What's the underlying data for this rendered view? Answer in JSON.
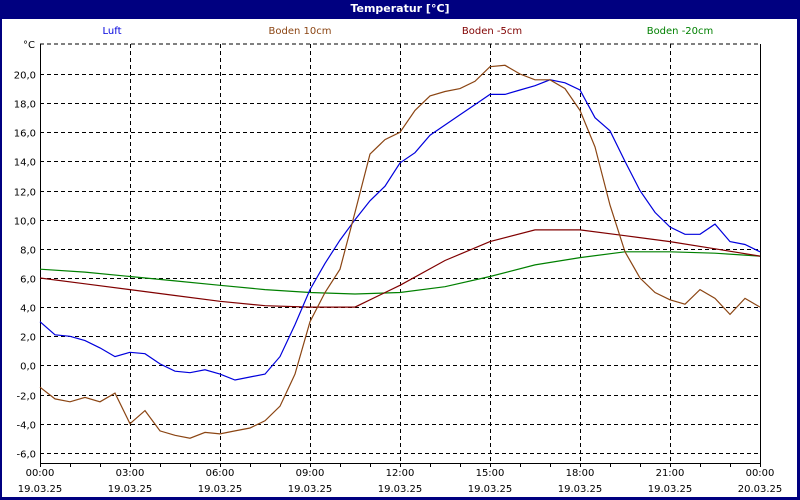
{
  "window": {
    "title": "Temperatur [°C]"
  },
  "chart_data": {
    "type": "line",
    "title": "Temperatur [°C]",
    "ylabel": "°C",
    "xlabel": "",
    "ylim": [
      -6.7,
      22.06
    ],
    "yticks": [
      20.0,
      18.0,
      16.0,
      14.0,
      12.0,
      10.0,
      8.0,
      6.0,
      4.0,
      2.0,
      0.0,
      -2.0,
      -4.0,
      -6.0
    ],
    "ytick_labels": [
      "20,0",
      "18,0",
      "16,0",
      "14,0",
      "12,0",
      "10,0",
      "8,0",
      "6,0",
      "4,0",
      "2,0",
      "0,0",
      "-2,0",
      "-4,0",
      "-6,0"
    ],
    "xticks": [
      {
        "time": "00:00",
        "date": "19.03.25"
      },
      {
        "time": "03:00",
        "date": "19.03.25"
      },
      {
        "time": "06:00",
        "date": "19.03.25"
      },
      {
        "time": "09:00",
        "date": "19.03.25"
      },
      {
        "time": "12:00",
        "date": "19.03.25"
      },
      {
        "time": "15:00",
        "date": "19.03.25"
      },
      {
        "time": "18:00",
        "date": "19.03.25"
      },
      {
        "time": "21:00",
        "date": "19.03.25"
      },
      {
        "time": "00:00",
        "date": "20.03.25"
      }
    ],
    "grid": true,
    "legend_position": "top",
    "x_unit": "hours since 19.03.25 00:00",
    "series": [
      {
        "name": "Luft",
        "color": "#0000dd",
        "x": [
          0,
          0.5,
          1,
          1.5,
          2,
          2.5,
          3,
          3.5,
          4,
          4.5,
          5,
          5.5,
          6,
          6.5,
          7,
          7.5,
          8,
          8.5,
          9,
          9.5,
          10,
          10.5,
          11,
          11.5,
          12,
          12.5,
          13,
          13.5,
          14,
          14.5,
          15,
          15.5,
          16,
          16.5,
          17,
          17.5,
          18,
          18.5,
          19,
          19.5,
          20,
          20.5,
          21,
          21.5,
          22,
          22.5,
          23,
          23.5,
          24
        ],
        "values": [
          3.0,
          2.1,
          2.0,
          1.7,
          1.2,
          0.6,
          0.9,
          0.8,
          0.1,
          -0.4,
          -0.5,
          -0.3,
          -0.6,
          -1.0,
          -0.8,
          -0.6,
          0.6,
          2.8,
          5.2,
          7.0,
          8.6,
          10.0,
          11.3,
          12.3,
          13.9,
          14.6,
          15.8,
          16.5,
          17.2,
          17.9,
          18.6,
          18.6,
          18.9,
          19.2,
          19.6,
          19.4,
          18.9,
          17.0,
          16.1,
          14.0,
          12.0,
          10.5,
          9.5,
          9.0,
          9.0,
          9.7,
          8.5,
          8.3,
          7.8
        ]
      },
      {
        "name": "Boden 10cm",
        "color": "#8b4513",
        "x": [
          0,
          0.5,
          1,
          1.5,
          2,
          2.5,
          3,
          3.5,
          4,
          4.5,
          5,
          5.5,
          6,
          6.5,
          7,
          7.5,
          8,
          8.5,
          9,
          9.5,
          10,
          10.5,
          11,
          11.5,
          12,
          12.5,
          13,
          13.5,
          14,
          14.5,
          15,
          15.5,
          16,
          16.5,
          17,
          17.5,
          18,
          18.5,
          19,
          19.5,
          20,
          20.5,
          21,
          21.5,
          22,
          22.5,
          23,
          23.5,
          24
        ],
        "values": [
          -1.5,
          -2.3,
          -2.5,
          -2.2,
          -2.5,
          -1.9,
          -4.0,
          -3.1,
          -4.5,
          -4.8,
          -5.0,
          -4.6,
          -4.7,
          -4.5,
          -4.3,
          -3.8,
          -2.8,
          -0.6,
          3.0,
          5.0,
          6.6,
          10.5,
          14.5,
          15.5,
          16.0,
          17.5,
          18.5,
          18.8,
          19.0,
          19.5,
          20.5,
          20.6,
          20.0,
          19.6,
          19.6,
          19.0,
          17.5,
          15.0,
          11.0,
          7.8,
          6.0,
          5.0,
          4.5,
          4.2,
          5.2,
          4.6,
          3.5,
          4.6,
          4.0
        ]
      },
      {
        "name": "Boden -5cm",
        "color": "#800000",
        "x": [
          0,
          1.5,
          3,
          4.5,
          6,
          7.5,
          9,
          10.5,
          12,
          13.5,
          15,
          16.5,
          18,
          19.5,
          21,
          22.5,
          24
        ],
        "values": [
          6.0,
          5.6,
          5.2,
          4.8,
          4.4,
          4.1,
          4.0,
          4.0,
          5.5,
          7.2,
          8.5,
          9.3,
          9.3,
          8.9,
          8.5,
          8.0,
          7.5
        ]
      },
      {
        "name": "Boden -20cm",
        "color": "#008000",
        "x": [
          0,
          1.5,
          3,
          4.5,
          6,
          7.5,
          9,
          10.5,
          12,
          13.5,
          15,
          16.5,
          18,
          19.5,
          21,
          22.5,
          24
        ],
        "values": [
          6.6,
          6.4,
          6.1,
          5.8,
          5.5,
          5.2,
          5.0,
          4.9,
          5.0,
          5.4,
          6.1,
          6.9,
          7.4,
          7.8,
          7.8,
          7.7,
          7.5
        ]
      }
    ]
  }
}
